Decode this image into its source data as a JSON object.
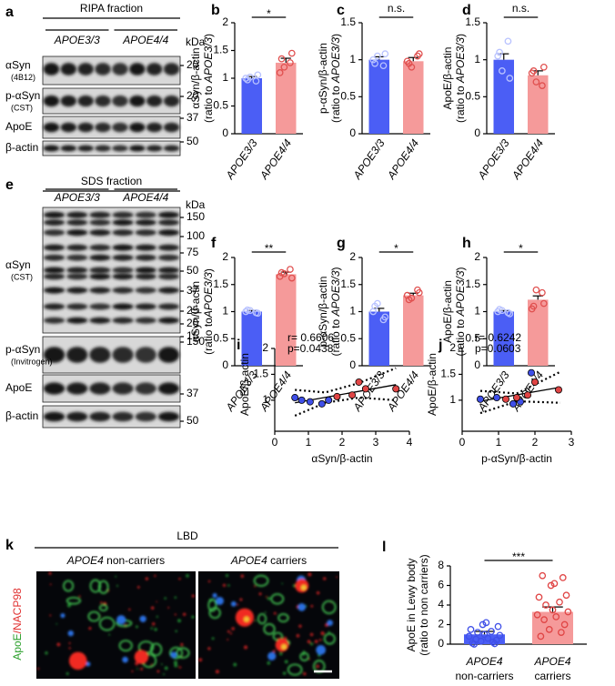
{
  "blots": [
    {
      "letter": "a",
      "title": "RIPA fraction",
      "groups": [
        "APOE3/3",
        "APOE4/4"
      ],
      "unit": "kDa",
      "rows": [
        {
          "label": "αSyn",
          "sublabel": "(4B12)",
          "markers": [
            20
          ]
        },
        {
          "label": "p-αSyn",
          "sublabel": "(CST)",
          "markers": [
            20
          ]
        },
        {
          "label": "ApoE",
          "markers": [
            37
          ]
        },
        {
          "label": "β-actin",
          "markers": [
            50
          ]
        }
      ]
    },
    {
      "letter": "e",
      "title": "SDS fraction",
      "groups": [
        "APOE3/3",
        "APOE4/4"
      ],
      "unit": "kDa",
      "rows": [
        {
          "label": "αSyn",
          "sublabel": "(CST)",
          "markers": [
            150,
            100,
            75,
            50,
            37,
            25,
            20,
            15
          ]
        },
        {
          "label": "p-αSyn",
          "sublabel": "(Invitrogen)",
          "markers": [
            150
          ]
        },
        {
          "label": "ApoE",
          "markers": [
            37
          ]
        },
        {
          "label": "β-actin",
          "markers": [
            50
          ]
        }
      ]
    }
  ],
  "chart_data": [
    {
      "type": "bar",
      "letter": "b",
      "ylabel": "αSyn/β-actin",
      "ylabel2": "(ratio to APOE3/3)",
      "categories": [
        "APOE3/3",
        "APOE4/4"
      ],
      "values": [
        1.0,
        1.28
      ],
      "errors": [
        0.03,
        0.08
      ],
      "colors": [
        "#4b5ef5",
        "#f59a9a"
      ],
      "point_colors": [
        "#b8c2ff",
        "#e0504f"
      ],
      "points": [
        [
          1.0,
          0.95,
          1.02,
          1.06,
          0.97
        ],
        [
          1.1,
          1.28,
          1.2,
          1.45,
          1.35
        ]
      ],
      "sig": "*",
      "ylim": [
        0,
        2
      ],
      "yticks": [
        0,
        0.5,
        1,
        1.5,
        2
      ]
    },
    {
      "type": "bar",
      "letter": "c",
      "ylabel": "p-αSyn/β-actin",
      "ylabel2": "(ratio to APOE3/3)",
      "categories": [
        "APOE3/3",
        "APOE4/4"
      ],
      "values": [
        1.0,
        0.98
      ],
      "errors": [
        0.04,
        0.05
      ],
      "colors": [
        "#4b5ef5",
        "#f59a9a"
      ],
      "point_colors": [
        "#b8c2ff",
        "#e0504f"
      ],
      "points": [
        [
          1.0,
          0.92,
          1.05,
          1.08,
          0.95
        ],
        [
          0.98,
          1.05,
          0.9,
          1.08,
          0.95
        ]
      ],
      "sig": "n.s.",
      "ylim": [
        0,
        1.5
      ],
      "yticks": [
        0,
        0.5,
        1,
        1.5
      ]
    },
    {
      "type": "bar",
      "letter": "d",
      "ylabel": "ApoE/β-actin",
      "ylabel2": "(ratio to APOE3/3)",
      "categories": [
        "APOE3/3",
        "APOE4/4"
      ],
      "values": [
        1.0,
        0.79
      ],
      "errors": [
        0.08,
        0.06
      ],
      "colors": [
        "#4b5ef5",
        "#f59a9a"
      ],
      "point_colors": [
        "#b8c2ff",
        "#e0504f"
      ],
      "points": [
        [
          1.05,
          1.25,
          0.85,
          0.75,
          1.1
        ],
        [
          0.82,
          0.65,
          0.7,
          0.9,
          0.85
        ]
      ],
      "sig": "n.s.",
      "ylim": [
        0,
        1.5
      ],
      "yticks": [
        0,
        0.5,
        1,
        1.5
      ]
    },
    {
      "type": "bar",
      "letter": "f",
      "ylabel": "αSyn/β-actin",
      "ylabel2": "(ratio toAPOE3/3)",
      "categories": [
        "APOE3/3",
        "APOE4/4"
      ],
      "values": [
        1.0,
        1.69
      ],
      "errors": [
        0.02,
        0.04
      ],
      "colors": [
        "#4b5ef5",
        "#f59a9a"
      ],
      "point_colors": [
        "#b8c2ff",
        "#e0504f"
      ],
      "points": [
        [
          1.0,
          0.98,
          1.02,
          0.97,
          1.03
        ],
        [
          1.65,
          1.78,
          1.7,
          1.62,
          1.72
        ]
      ],
      "sig": "**",
      "ylim": [
        0,
        2
      ],
      "yticks": [
        0,
        0.5,
        1,
        1.5,
        2
      ]
    },
    {
      "type": "bar",
      "letter": "g",
      "ylabel": "p-αSyn/β-actin",
      "ylabel2": "(ratio to APOE3/3)",
      "categories": [
        "APOE3/3",
        "APOE4/4"
      ],
      "values": [
        1.0,
        1.3
      ],
      "errors": [
        0.06,
        0.04
      ],
      "colors": [
        "#4b5ef5",
        "#f59a9a"
      ],
      "point_colors": [
        "#b8c2ff",
        "#e0504f"
      ],
      "points": [
        [
          1.0,
          0.85,
          1.15,
          0.9,
          1.1
        ],
        [
          1.3,
          1.4,
          1.25,
          1.35,
          1.22
        ]
      ],
      "sig": "*",
      "ylim": [
        0,
        2
      ],
      "yticks": [
        0,
        0.5,
        1,
        1.5,
        2
      ]
    },
    {
      "type": "bar",
      "letter": "h",
      "ylabel": "ApoE/β-actin",
      "ylabel2": "(ratio to APOE3/3)",
      "categories": [
        "APOE3/3",
        "APOE4/4"
      ],
      "values": [
        1.0,
        1.22
      ],
      "errors": [
        0.02,
        0.07
      ],
      "colors": [
        "#4b5ef5",
        "#f59a9a"
      ],
      "point_colors": [
        "#b8c2ff",
        "#e0504f"
      ],
      "points": [
        [
          1.0,
          0.98,
          1.02,
          0.96,
          1.04
        ],
        [
          1.05,
          1.35,
          1.4,
          1.15,
          1.1
        ]
      ],
      "sig": "*",
      "ylim": [
        0,
        2
      ],
      "yticks": [
        0,
        0.5,
        1,
        1.5,
        2
      ]
    },
    {
      "type": "scatter",
      "letter": "i",
      "xlabel": "αSyn/β-actin",
      "ylabel": "ApoE/β-actin",
      "r": "r= 0.6606",
      "p": "p=0.0438",
      "series": [
        {
          "color": "#3f4fe8",
          "x": [
            0.6,
            0.8,
            1.05,
            1.4,
            1.6
          ],
          "y": [
            1.05,
            1.0,
            0.97,
            0.93,
            1.0
          ]
        },
        {
          "color": "#e04545",
          "x": [
            1.85,
            2.3,
            2.5,
            2.7,
            3.6
          ],
          "y": [
            1.07,
            1.1,
            1.35,
            1.22,
            1.22
          ]
        }
      ],
      "fit": {
        "x": [
          0.6,
          3.6
        ],
        "y": [
          0.95,
          1.3
        ]
      },
      "ci_upper": {
        "x": [
          0.6,
          1.5,
          2.5,
          3.6
        ],
        "y": [
          1.2,
          1.15,
          1.33,
          1.62
        ]
      },
      "ci_lower": {
        "x": [
          0.6,
          1.5,
          2.5,
          3.6
        ],
        "y": [
          0.7,
          0.95,
          1.05,
          1.0
        ]
      },
      "xlim": [
        0,
        4
      ],
      "xticks": [
        0,
        1,
        2,
        3,
        4
      ],
      "ylim": [
        0.4,
        2
      ],
      "yticks": [
        1,
        1.5,
        2
      ]
    },
    {
      "type": "scatter",
      "letter": "j",
      "xlabel": "p-αSyn/β-actin",
      "ylabel": "ApoE/β-actin",
      "r": "r= 0.6242",
      "p": "p=0.0603",
      "series": [
        {
          "color": "#3f4fe8",
          "x": [
            0.5,
            0.95,
            1.4,
            1.6,
            1.9
          ],
          "y": [
            1.02,
            1.05,
            0.93,
            0.97,
            1.53
          ]
        },
        {
          "color": "#e04545",
          "x": [
            1.2,
            1.5,
            1.8,
            2.0,
            2.65
          ],
          "y": [
            1.02,
            1.05,
            1.1,
            1.35,
            1.2
          ]
        }
      ],
      "fit": {
        "x": [
          0.5,
          2.7
        ],
        "y": [
          0.98,
          1.25
        ]
      },
      "ci_upper": {
        "x": [
          0.5,
          1.5,
          2.7
        ],
        "y": [
          1.18,
          1.13,
          1.55
        ]
      },
      "ci_lower": {
        "x": [
          0.5,
          1.5,
          2.7
        ],
        "y": [
          0.75,
          0.98,
          0.95
        ]
      },
      "xlim": [
        0,
        3
      ],
      "xticks": [
        0,
        1,
        2,
        3
      ],
      "ylim": [
        0.4,
        2
      ],
      "yticks": [
        1,
        1.5,
        2
      ]
    },
    {
      "type": "bar",
      "letter": "l",
      "ylabel": "ApoE in Lewy body",
      "ylabel2": "(ratio to non carriers)",
      "categories": [
        "APOE4 non-carriers",
        "APOE4 carriers"
      ],
      "values": [
        1.0,
        3.3
      ],
      "errors": [
        0.3,
        0.5
      ],
      "colors": [
        "#4b5ef5",
        "#f59a9a"
      ],
      "point_colors": [
        "#3f4fe8",
        "#e04545"
      ],
      "points": [
        [
          0.1,
          0.2,
          0.3,
          0.4,
          0.5,
          0.6,
          0.8,
          0.9,
          1.0,
          1.2,
          1.3,
          1.5,
          1.8,
          2.0,
          2.2,
          0,
          0.05
        ],
        [
          0.8,
          1.2,
          1.5,
          2.0,
          2.5,
          2.8,
          3.0,
          3.3,
          3.5,
          4.0,
          4.3,
          4.8,
          5.0,
          6.0,
          6.2,
          7.0,
          6.8
        ]
      ],
      "sig": "***",
      "ylim": [
        0,
        8
      ],
      "yticks": [
        0,
        2,
        4,
        6,
        8
      ]
    }
  ],
  "micrograph": {
    "letter": "k",
    "condition": "LBD",
    "panels": [
      "APOE4 non-carriers",
      "APOE4 carriers"
    ],
    "stain": "ApoE/NACP98"
  }
}
